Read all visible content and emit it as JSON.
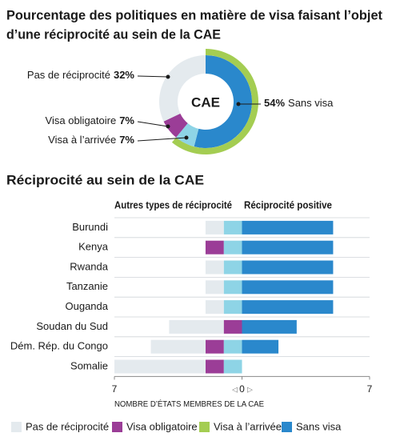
{
  "chart_data": [
    {
      "type": "donut",
      "title": [
        "Pourcentage des politiques en matière de visa faisant l’objet",
        "d’une réciprocité au sein de la CAE"
      ],
      "center_label": "CAE",
      "categories": [
        "Sans visa",
        "Visa à l’arrivée",
        "Visa obligatoire",
        "Pas de réciprocité"
      ],
      "values": [
        54,
        7,
        7,
        32
      ],
      "value_labels": [
        "54%",
        "7%",
        "7%",
        "32%"
      ],
      "colors": [
        "#2a88cc",
        "#8ed4e6",
        "#9b3d97",
        "#e4eaee"
      ],
      "ring_color": "#a4cd52"
    },
    {
      "type": "diverging-bar",
      "title": "Réciprocité au sein de la CAE",
      "left_label": "Autres types de réciprocité",
      "right_label": "Réciprocité positive",
      "x_label": "NOMBRE D’ÉTATS MEMBRES DE LA CAE",
      "categories": [
        "Burundi",
        "Kenya",
        "Rwanda",
        "Tanzanie",
        "Ouganda",
        "Soudan du Sud",
        "Dém. Rép. du Congo",
        "Somalie"
      ],
      "series": [
        {
          "name": "Pas de réciprocité",
          "color": "#e4eaee",
          "values": [
            -1,
            0,
            -1,
            -1,
            -1,
            -3,
            -3,
            -5
          ]
        },
        {
          "name": "Visa obligatoire",
          "color": "#9b3d97",
          "values": [
            0,
            -1,
            0,
            0,
            0,
            -1,
            -1,
            -1
          ]
        },
        {
          "name": "Visa à l’arrivée",
          "color": "#8ed4e6",
          "values": [
            -1,
            -1,
            -1,
            -1,
            -1,
            0,
            -1,
            -1
          ]
        },
        {
          "name": "Sans visa",
          "color": "#2a88cc",
          "values": [
            5,
            5,
            5,
            5,
            5,
            3,
            2,
            0
          ]
        }
      ],
      "legend_colors": [
        "#e4eaee",
        "#9b3d97",
        "#a4cd52",
        "#2a88cc"
      ],
      "xlim": [
        -7,
        7
      ],
      "xticks": [
        {
          "value": -7,
          "label": "7"
        },
        0,
        7
      ]
    }
  ]
}
